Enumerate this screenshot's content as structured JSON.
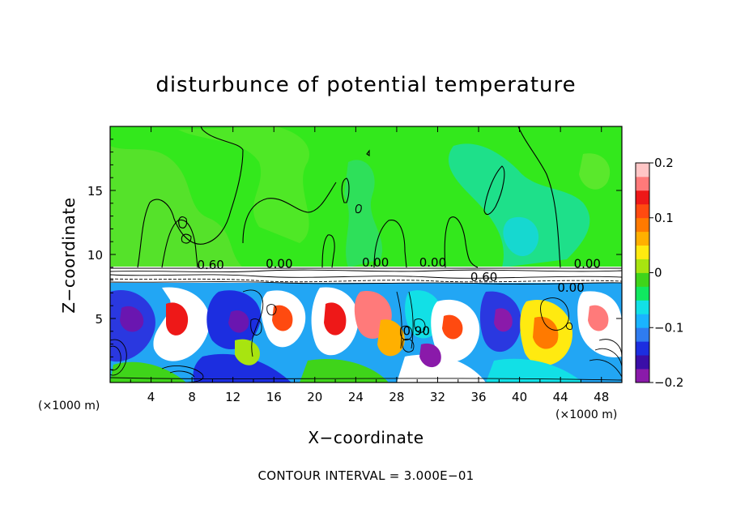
{
  "chart_data": {
    "type": "heatmap",
    "title": "disturbunce of potential temperature",
    "xlabel": "X−coordinate",
    "ylabel": "Z−coordinate",
    "x_unit": "(×1000 m)",
    "x_unit_right": "(×1000 m)",
    "xlim": [
      0,
      50
    ],
    "ylim": [
      0,
      20
    ],
    "x_ticks": [
      4,
      8,
      12,
      16,
      20,
      24,
      28,
      32,
      36,
      40,
      44,
      48
    ],
    "y_ticks": [
      5,
      10,
      15
    ],
    "colorbar": {
      "ticks": [
        0.2,
        0.1,
        0,
        -0.1,
        -0.2
      ],
      "tick_labels": [
        "0.2",
        "0.1",
        "0",
        "−0.1",
        "−0.2"
      ],
      "range": [
        -0.2,
        0.2
      ],
      "colors": [
        "#8a1aaa",
        "#3a0ea8",
        "#1c2ee0",
        "#2f7cf0",
        "#1ab4ff",
        "#12e0e6",
        "#10e860",
        "#3fd41a",
        "#a8e410",
        "#ffea10",
        "#ffb000",
        "#ff7a00",
        "#ff4a10",
        "#ee1818",
        "#ff7a7a",
        "#ffc6c6"
      ]
    },
    "contour_labels": [
      "0.60",
      "0.00",
      "0.00",
      "0.00",
      "0.60",
      "0.00",
      "0.00",
      "0.90"
    ],
    "contour_interval_text": "CONTOUR INTERVAL = 3.000E−01"
  }
}
